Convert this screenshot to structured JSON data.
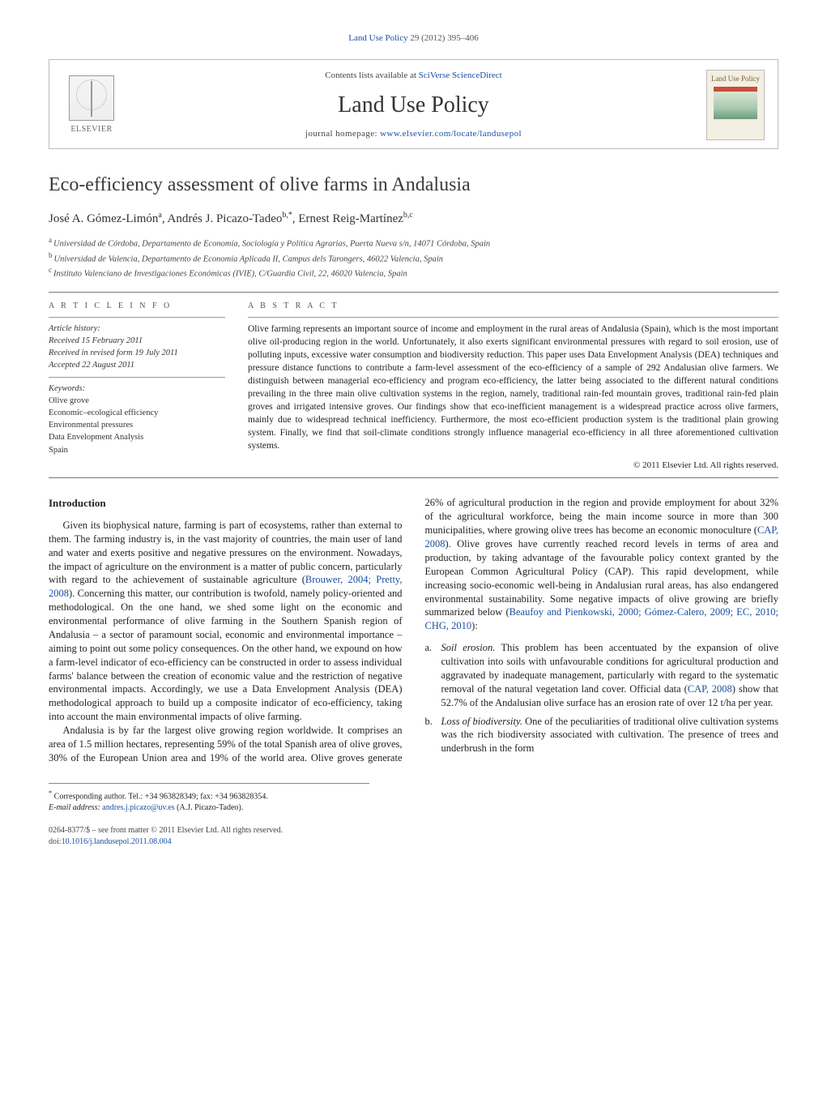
{
  "citation": {
    "journal_link_text": "Land Use Policy",
    "volume_issue": " 29 (2012) 395–406"
  },
  "header": {
    "contents_prefix": "Contents lists available at ",
    "contents_link": "SciVerse ScienceDirect",
    "journal_name": "Land Use Policy",
    "homepage_prefix": "journal homepage: ",
    "homepage_link": "www.elsevier.com/locate/landusepol",
    "publisher_name": "ELSEVIER",
    "cover_title": "Land Use Policy"
  },
  "article": {
    "title": "Eco-efficiency assessment of olive farms in Andalusia",
    "authors_html_parts": {
      "a1": "José A. Gómez-Limón",
      "a1_sup": "a",
      "a2": "Andrés J. Picazo-Tadeo",
      "a2_sup": "b,",
      "a2_star": "*",
      "a3": "Ernest Reig-Martínez",
      "a3_sup": "b,c"
    },
    "affiliations": [
      {
        "sup": "a",
        "text": "Universidad de Córdoba, Departamento de Economía, Sociología y Política Agrarias, Puerta Nueva s/n, 14071 Córdoba, Spain"
      },
      {
        "sup": "b",
        "text": "Universidad de Valencia, Departamento de Economía Aplicada II, Campus dels Tarongers, 46022 Valencia, Spain"
      },
      {
        "sup": "c",
        "text": "Instituto Valenciano de Investigaciones Económicas (IVIE), C/Guardia Civil, 22, 46020 Valencia, Spain"
      }
    ]
  },
  "info": {
    "section_label": "a r t i c l e   i n f o",
    "history_label": "Article history:",
    "history": [
      "Received 15 February 2011",
      "Received in revised form 19 July 2011",
      "Accepted 22 August 2011"
    ],
    "keywords_label": "Keywords:",
    "keywords": [
      "Olive grove",
      "Economic–ecological efficiency",
      "Environmental pressures",
      "Data Envelopment Analysis",
      "Spain"
    ]
  },
  "abstract": {
    "section_label": "a b s t r a c t",
    "text": "Olive farming represents an important source of income and employment in the rural areas of Andalusia (Spain), which is the most important olive oil-producing region in the world. Unfortunately, it also exerts significant environmental pressures with regard to soil erosion, use of polluting inputs, excessive water consumption and biodiversity reduction. This paper uses Data Envelopment Analysis (DEA) techniques and pressure distance functions to contribute a farm-level assessment of the eco-efficiency of a sample of 292 Andalusian olive farmers. We distinguish between managerial eco-efficiency and program eco-efficiency, the latter being associated to the different natural conditions prevailing in the three main olive cultivation systems in the region, namely, traditional rain-fed mountain groves, traditional rain-fed plain groves and irrigated intensive groves. Our findings show that eco-inefficient management is a widespread practice across olive farmers, mainly due to widespread technical inefficiency. Furthermore, the most eco-efficient production system is the traditional plain growing system. Finally, we find that soil-climate conditions strongly influence managerial eco-efficiency in all three aforementioned cultivation systems.",
    "copyright": "© 2011 Elsevier Ltd. All rights reserved."
  },
  "body": {
    "intro_heading": "Introduction",
    "p1a": "Given its biophysical nature, farming is part of ecosystems, rather than external to them. The farming industry is, in the vast majority of countries, the main user of land and water and exerts positive and negative pressures on the environment. Nowadays, the impact of agriculture on the environment is a matter of public concern, particularly with regard to the achievement of sustainable agriculture (",
    "p1_ref1": "Brouwer, 2004; Pretty, 2008",
    "p1b": "). Concerning this matter, our contribution is twofold, namely policy-oriented and methodological. On the one hand, we shed some light on the economic and environmental performance of olive farming in the Southern Spanish region of Andalusia – a sector of paramount social, economic and environmental importance – aiming to point out some policy consequences. On the other hand, we expound on how a farm-level indicator of eco-efficiency can be constructed in order to assess individual farms' balance between the creation of economic value and the restriction of negative environmental impacts. Accordingly, we use a Data Envelopment Analysis (DEA) methodological approach to build up a composite indicator of eco-efficiency, taking into account the main environmental impacts of olive farming.",
    "p2a": "Andalusia is by far the largest olive growing region worldwide. It comprises an area of 1.5 million hectares, representing 59% of the total Spanish area of olive groves, 30% of the European Union area and 19% of the world area. Olive groves generate 26% of agricultural production in the region and provide employment for about 32% of the agricultural workforce, being the main income source in more than 300 municipalities, where growing olive trees has become an economic monoculture (",
    "p2_ref1": "CAP, 2008",
    "p2b": "). Olive groves have currently reached record levels in terms of area and production, by taking advantage of the favourable policy context granted by the European Common Agricultural Policy (CAP). This rapid development, while increasing socio-economic well-being in Andalusian rural areas, has also endangered environmental sustainability. Some negative impacts of olive growing are briefly summarized below (",
    "p2_ref2": "Beaufoy and Pienkowski, 2000; Gómez-Calero, 2009; EC, 2010; CHG, 2010",
    "p2c": "):",
    "list": [
      {
        "marker": "a.",
        "title": "Soil erosion.",
        "text_a": " This problem has been accentuated by the expansion of olive cultivation into soils with unfavourable conditions for agricultural production and aggravated by inadequate management, particularly with regard to the systematic removal of the natural vegetation land cover. Official data (",
        "ref": "CAP, 2008",
        "text_b": ") show that 52.7% of the Andalusian olive surface has an erosion rate of over 12 t/ha per year."
      },
      {
        "marker": "b.",
        "title": "Loss of biodiversity.",
        "text_a": " One of the peculiarities of traditional olive cultivation systems was the rich biodiversity associated with cultivation. The presence of trees and underbrush in the form",
        "ref": "",
        "text_b": ""
      }
    ]
  },
  "footnote": {
    "star": "*",
    "label": " Corresponding author. Tel.: +34 963828349; fax: +34 963828354.",
    "email_label": "E-mail address: ",
    "email": "andres.j.picazo@uv.es",
    "email_suffix": " (A.J. Picazo-Tadeo)."
  },
  "bottom": {
    "line1": "0264-8377/$ – see front matter © 2011 Elsevier Ltd. All rights reserved.",
    "doi_prefix": "doi:",
    "doi": "10.1016/j.landusepol.2011.08.004"
  },
  "colors": {
    "link": "#1a4fa0",
    "rule": "#777777",
    "text": "#222222"
  }
}
